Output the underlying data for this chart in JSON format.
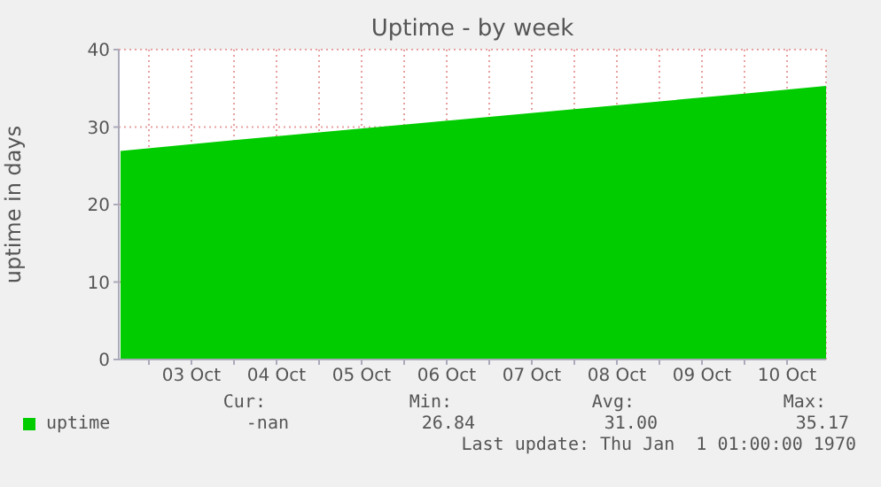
{
  "chart_data": {
    "type": "area",
    "title": "Uptime - by week",
    "ylabel": "uptime in days",
    "x": [
      "--10-02T16:00",
      "--10-04T00:00",
      "--10-06T00:00",
      "--10-08T00:00",
      "--10-10T00:00",
      "--10-10T23:00"
    ],
    "series": [
      {
        "name": "uptime",
        "color": "#00cc00",
        "values": [
          26.8,
          28.2,
          30.2,
          32.2,
          34.2,
          35.2
        ]
      }
    ],
    "xlim": [
      "--10-02T15:30",
      "--10-10T23:00"
    ],
    "xticks": [
      {
        "value": "--10-03T00:00",
        "label": null
      },
      {
        "value": "--10-03T12:00",
        "label": "03 Oct"
      },
      {
        "value": "--10-04T00:00",
        "label": null
      },
      {
        "value": "--10-04T12:00",
        "label": "04 Oct"
      },
      {
        "value": "--10-05T00:00",
        "label": null
      },
      {
        "value": "--10-05T12:00",
        "label": "05 Oct"
      },
      {
        "value": "--10-06T00:00",
        "label": null
      },
      {
        "value": "--10-06T12:00",
        "label": "06 Oct"
      },
      {
        "value": "--10-07T00:00",
        "label": null
      },
      {
        "value": "--10-07T12:00",
        "label": "07 Oct"
      },
      {
        "value": "--10-08T00:00",
        "label": null
      },
      {
        "value": "--10-08T12:00",
        "label": "08 Oct"
      },
      {
        "value": "--10-09T00:00",
        "label": null
      },
      {
        "value": "--10-09T12:00",
        "label": "09 Oct"
      },
      {
        "value": "--10-10T00:00",
        "label": null
      },
      {
        "value": "--10-10T12:00",
        "label": "10 Oct"
      }
    ],
    "ylim": [
      0,
      40
    ],
    "yticks": [
      0,
      10,
      20,
      30,
      40
    ],
    "grid": true,
    "legend": "bottom left",
    "annotations": [
      "Cur:",
      "Min:",
      "Avg:",
      "Max:",
      "-nan",
      "26.84",
      "31.00",
      "35.17",
      "Last update: Thu Jan  1 01:00:00 1970"
    ]
  }
}
